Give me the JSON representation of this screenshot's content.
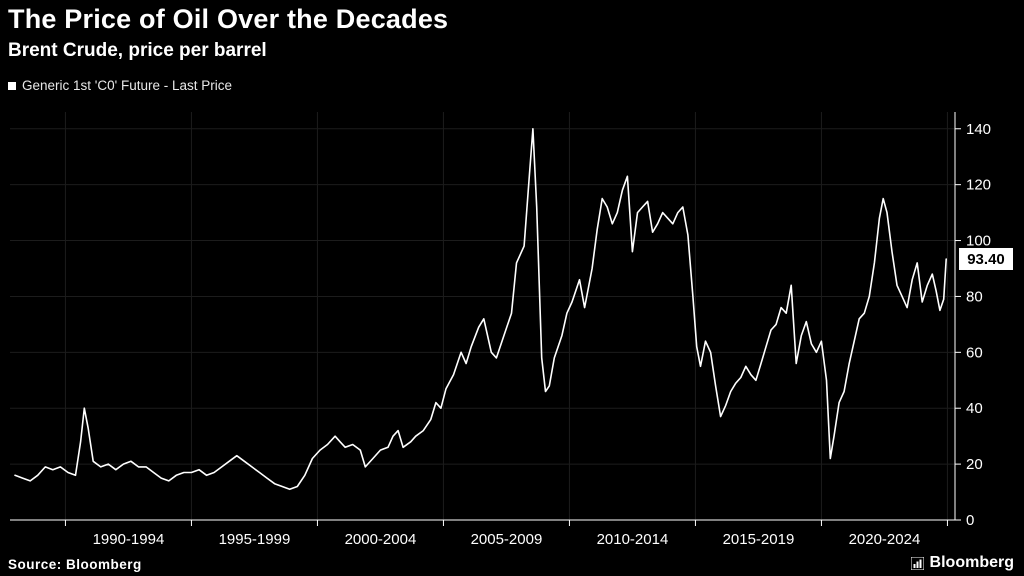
{
  "header": {
    "title": "The Price of Oil Over the Decades",
    "subtitle": "Brent Crude, price per barrel"
  },
  "legend": {
    "label": "Generic 1st 'C0' Future - Last Price",
    "marker_color": "#ffffff"
  },
  "footer": {
    "source": "Source: Bloomberg",
    "brand": "Bloomberg"
  },
  "chart_data": {
    "type": "line",
    "title": "The Price of Oil Over the Decades",
    "subtitle": "Brent Crude, price per barrel",
    "legend": [
      "Generic 1st 'C0' Future - Last Price"
    ],
    "source": "Source: Bloomberg",
    "last_price": 93.4,
    "last_price_label": "93.40",
    "line_color": "#ffffff",
    "background": "#000000",
    "grid_color": "#1c1c1c",
    "ylabel": "",
    "xlabel": "",
    "ylim": [
      0,
      146
    ],
    "yticks": [
      0,
      20,
      40,
      60,
      80,
      100,
      120,
      140
    ],
    "xlim": [
      1987.8,
      2025.3
    ],
    "x_tick_positions": [
      1990,
      1995,
      2000,
      2005,
      2010,
      2015,
      2020,
      2025
    ],
    "x_label_centers": [
      1992.5,
      1997.5,
      2002.5,
      2007.5,
      2012.5,
      2017.5,
      2022.5
    ],
    "categories": [
      "1990-1994",
      "1995-1999",
      "2000-2004",
      "2005-2009",
      "2010-2014",
      "2015-2019",
      "2020-2024"
    ],
    "series": [
      {
        "name": "Generic 1st 'C0' Future - Last Price",
        "points": [
          [
            1988.0,
            16
          ],
          [
            1988.3,
            15
          ],
          [
            1988.6,
            14
          ],
          [
            1988.9,
            16
          ],
          [
            1989.2,
            19
          ],
          [
            1989.5,
            18
          ],
          [
            1989.8,
            19
          ],
          [
            1990.1,
            17
          ],
          [
            1990.4,
            16
          ],
          [
            1990.6,
            28
          ],
          [
            1990.75,
            40
          ],
          [
            1990.9,
            33
          ],
          [
            1991.1,
            21
          ],
          [
            1991.4,
            19
          ],
          [
            1991.7,
            20
          ],
          [
            1992.0,
            18
          ],
          [
            1992.3,
            20
          ],
          [
            1992.6,
            21
          ],
          [
            1992.9,
            19
          ],
          [
            1993.2,
            19
          ],
          [
            1993.5,
            17
          ],
          [
            1993.8,
            15
          ],
          [
            1994.1,
            14
          ],
          [
            1994.4,
            16
          ],
          [
            1994.7,
            17
          ],
          [
            1995.0,
            17
          ],
          [
            1995.3,
            18
          ],
          [
            1995.6,
            16
          ],
          [
            1995.9,
            17
          ],
          [
            1996.2,
            19
          ],
          [
            1996.5,
            21
          ],
          [
            1996.8,
            23
          ],
          [
            1997.1,
            21
          ],
          [
            1997.4,
            19
          ],
          [
            1997.7,
            17
          ],
          [
            1998.0,
            15
          ],
          [
            1998.3,
            13
          ],
          [
            1998.6,
            12
          ],
          [
            1998.9,
            11
          ],
          [
            1999.2,
            12
          ],
          [
            1999.5,
            16
          ],
          [
            1999.8,
            22
          ],
          [
            2000.1,
            25
          ],
          [
            2000.4,
            27
          ],
          [
            2000.7,
            30
          ],
          [
            2000.9,
            28
          ],
          [
            2001.1,
            26
          ],
          [
            2001.4,
            27
          ],
          [
            2001.7,
            25
          ],
          [
            2001.9,
            19
          ],
          [
            2002.2,
            22
          ],
          [
            2002.5,
            25
          ],
          [
            2002.8,
            26
          ],
          [
            2003.0,
            30
          ],
          [
            2003.2,
            32
          ],
          [
            2003.4,
            26
          ],
          [
            2003.7,
            28
          ],
          [
            2003.9,
            30
          ],
          [
            2004.2,
            32
          ],
          [
            2004.5,
            36
          ],
          [
            2004.7,
            42
          ],
          [
            2004.9,
            40
          ],
          [
            2005.1,
            47
          ],
          [
            2005.4,
            52
          ],
          [
            2005.7,
            60
          ],
          [
            2005.9,
            56
          ],
          [
            2006.1,
            62
          ],
          [
            2006.4,
            69
          ],
          [
            2006.6,
            72
          ],
          [
            2006.9,
            60
          ],
          [
            2007.1,
            58
          ],
          [
            2007.4,
            66
          ],
          [
            2007.7,
            74
          ],
          [
            2007.9,
            92
          ],
          [
            2008.2,
            98
          ],
          [
            2008.4,
            122
          ],
          [
            2008.55,
            140
          ],
          [
            2008.7,
            112
          ],
          [
            2008.9,
            58
          ],
          [
            2009.05,
            46
          ],
          [
            2009.2,
            48
          ],
          [
            2009.4,
            58
          ],
          [
            2009.7,
            66
          ],
          [
            2009.9,
            74
          ],
          [
            2010.1,
            78
          ],
          [
            2010.4,
            86
          ],
          [
            2010.6,
            76
          ],
          [
            2010.9,
            90
          ],
          [
            2011.1,
            104
          ],
          [
            2011.3,
            115
          ],
          [
            2011.5,
            112
          ],
          [
            2011.7,
            106
          ],
          [
            2011.9,
            110
          ],
          [
            2012.1,
            118
          ],
          [
            2012.3,
            123
          ],
          [
            2012.5,
            96
          ],
          [
            2012.7,
            110
          ],
          [
            2012.9,
            112
          ],
          [
            2013.1,
            114
          ],
          [
            2013.3,
            103
          ],
          [
            2013.5,
            106
          ],
          [
            2013.7,
            110
          ],
          [
            2013.9,
            108
          ],
          [
            2014.1,
            106
          ],
          [
            2014.3,
            110
          ],
          [
            2014.5,
            112
          ],
          [
            2014.7,
            102
          ],
          [
            2014.9,
            80
          ],
          [
            2015.05,
            62
          ],
          [
            2015.2,
            55
          ],
          [
            2015.4,
            64
          ],
          [
            2015.6,
            60
          ],
          [
            2015.8,
            48
          ],
          [
            2016.0,
            37
          ],
          [
            2016.2,
            41
          ],
          [
            2016.4,
            46
          ],
          [
            2016.6,
            49
          ],
          [
            2016.8,
            51
          ],
          [
            2017.0,
            55
          ],
          [
            2017.2,
            52
          ],
          [
            2017.4,
            50
          ],
          [
            2017.6,
            56
          ],
          [
            2017.8,
            62
          ],
          [
            2018.0,
            68
          ],
          [
            2018.2,
            70
          ],
          [
            2018.4,
            76
          ],
          [
            2018.6,
            74
          ],
          [
            2018.8,
            84
          ],
          [
            2019.0,
            56
          ],
          [
            2019.2,
            66
          ],
          [
            2019.4,
            71
          ],
          [
            2019.6,
            63
          ],
          [
            2019.8,
            60
          ],
          [
            2020.0,
            64
          ],
          [
            2020.2,
            50
          ],
          [
            2020.35,
            22
          ],
          [
            2020.5,
            30
          ],
          [
            2020.7,
            42
          ],
          [
            2020.9,
            46
          ],
          [
            2021.1,
            56
          ],
          [
            2021.3,
            64
          ],
          [
            2021.5,
            72
          ],
          [
            2021.7,
            74
          ],
          [
            2021.9,
            80
          ],
          [
            2022.1,
            92
          ],
          [
            2022.3,
            108
          ],
          [
            2022.45,
            115
          ],
          [
            2022.6,
            110
          ],
          [
            2022.8,
            96
          ],
          [
            2023.0,
            84
          ],
          [
            2023.2,
            80
          ],
          [
            2023.4,
            76
          ],
          [
            2023.6,
            86
          ],
          [
            2023.8,
            92
          ],
          [
            2024.0,
            78
          ],
          [
            2024.2,
            84
          ],
          [
            2024.4,
            88
          ],
          [
            2024.55,
            82
          ],
          [
            2024.7,
            75
          ],
          [
            2024.85,
            79
          ],
          [
            2024.95,
            93.4
          ]
        ]
      }
    ]
  }
}
